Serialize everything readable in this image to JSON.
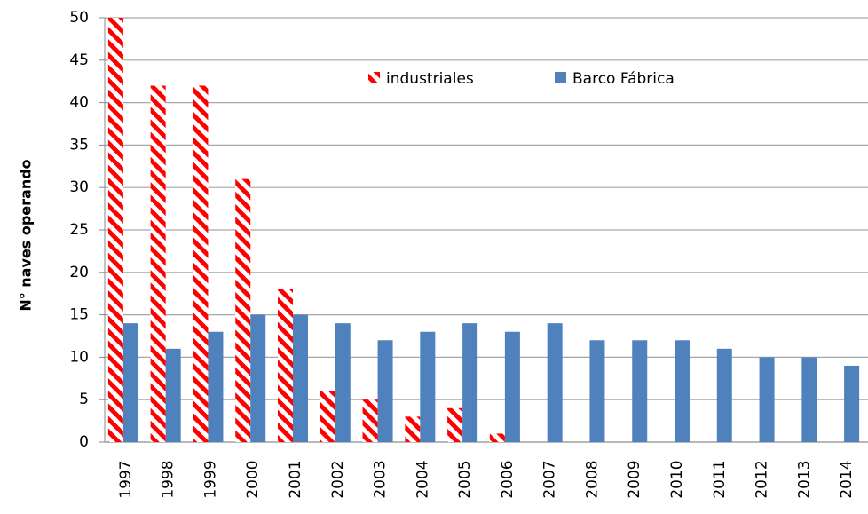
{
  "chart_data": {
    "type": "bar",
    "y_label": "N° naves operando",
    "categories": [
      "1997",
      "1998",
      "1999",
      "2000",
      "2001",
      "2002",
      "2003",
      "2004",
      "2005",
      "2006",
      "2007",
      "2008",
      "2009",
      "2010",
      "2011",
      "2012",
      "2013",
      "2014"
    ],
    "series": [
      {
        "name": "industriales",
        "color": "#ff0000",
        "pattern": "hatch",
        "values": [
          50,
          42,
          42,
          31,
          18,
          6,
          5,
          3,
          4,
          1,
          0,
          0,
          0,
          0,
          0,
          0,
          0,
          0
        ]
      },
      {
        "name": "Barco Fábrica",
        "color": "#4f81bd",
        "values": [
          14,
          11,
          13,
          15,
          15,
          14,
          12,
          13,
          14,
          13,
          14,
          12,
          12,
          12,
          11,
          10,
          10,
          9
        ]
      }
    ],
    "ylim": [
      0,
      50
    ],
    "yticks": [
      0,
      5,
      10,
      15,
      20,
      25,
      30,
      35,
      40,
      45,
      50
    ],
    "grid": true
  }
}
